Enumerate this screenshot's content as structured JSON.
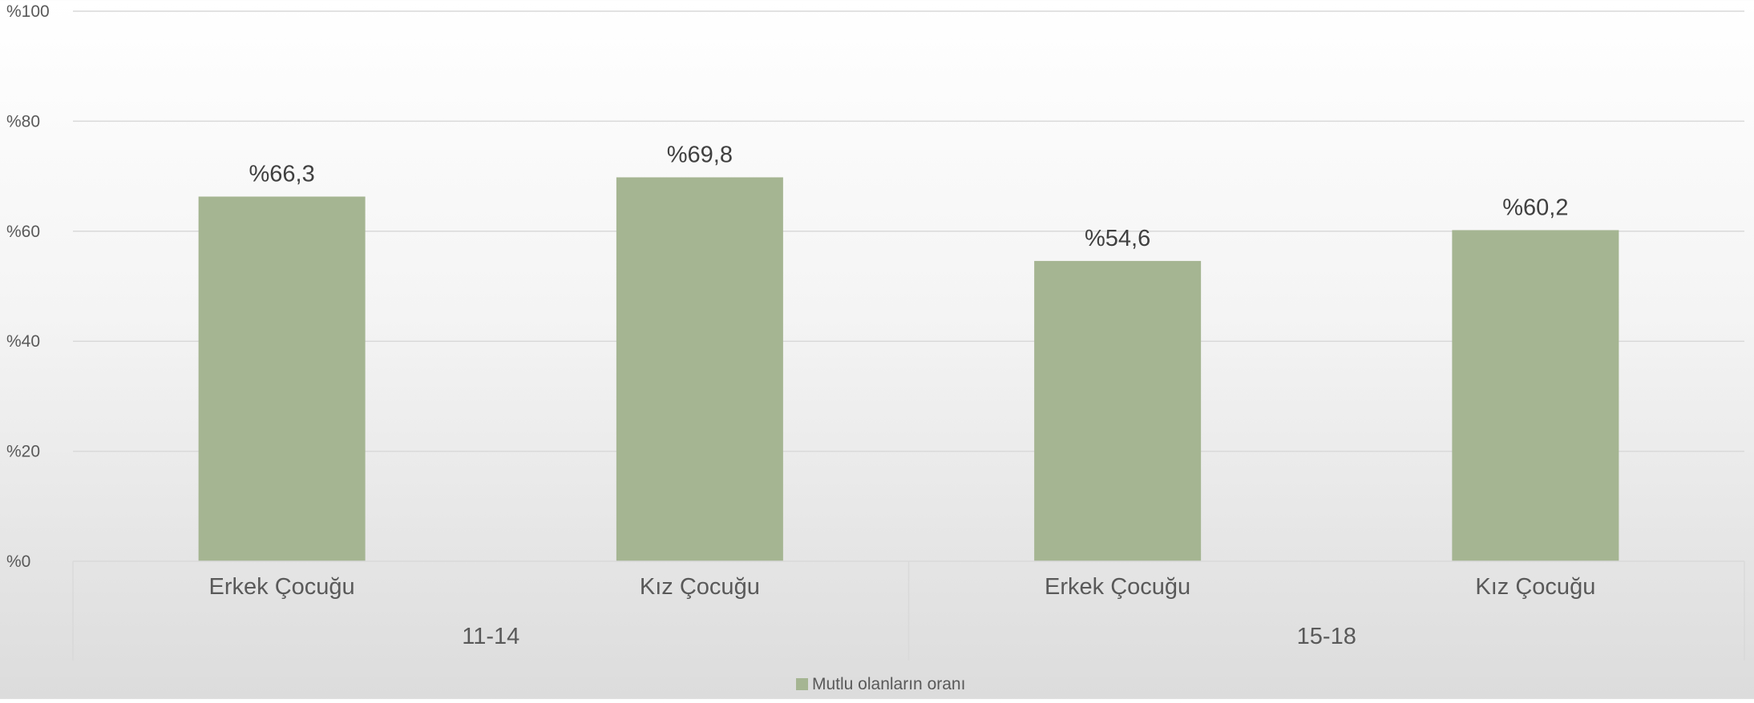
{
  "chart_data": {
    "type": "bar",
    "groups": [
      {
        "label": "11-14",
        "categories": [
          "Erkek Çocuğu",
          "Kız Çocuğu"
        ],
        "values": [
          66.3,
          69.8
        ],
        "value_labels": [
          "%66,3",
          "%69,8"
        ]
      },
      {
        "label": "15-18",
        "categories": [
          "Erkek Çocuğu",
          "Kız Çocuğu"
        ],
        "values": [
          54.6,
          60.2
        ],
        "value_labels": [
          "%54,6",
          "%60,2"
        ]
      }
    ],
    "series": [
      {
        "name": "Mutlu olanların oranı",
        "color": "#a5b592"
      }
    ],
    "yticks": [
      0,
      20,
      40,
      60,
      80,
      100
    ],
    "ytick_labels": [
      "%0",
      "%20",
      "%40",
      "%60",
      "%80",
      "%100"
    ],
    "ylim": [
      0,
      100
    ],
    "grid": true,
    "legend": "bottom-center",
    "colors": {
      "bar": "#a5b592",
      "gridline": "#d9d9d9",
      "axis": "#d9d9d9"
    }
  }
}
